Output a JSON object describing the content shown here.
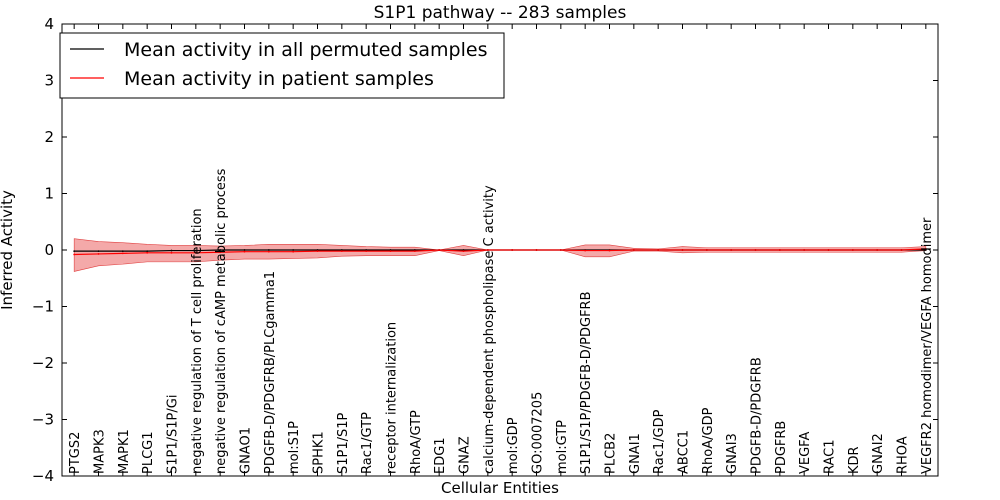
{
  "chart_data": {
    "type": "line",
    "title": "S1P1 pathway -- 283 samples",
    "xlabel": "Cellular Entities",
    "ylabel": "Inferred Activity",
    "ylim": [
      -4,
      4
    ],
    "yticks": [
      -4,
      -3,
      -2,
      -1,
      0,
      1,
      2,
      3,
      4
    ],
    "ytick_labels": [
      "−4",
      "−3",
      "−2",
      "−1",
      "0",
      "1",
      "2",
      "3",
      "4"
    ],
    "categories": [
      "PTGS2",
      "MAPK3",
      "MAPK1",
      "PLCG1",
      "S1P1/S1P/Gi",
      "negative regulation of T cell proliferation",
      "negative regulation of cAMP metabolic process",
      "GNAO1",
      "PDGFB-D/PDGFRB/PLCgamma1",
      "mol:S1P",
      "SPHK1",
      "S1P1/S1P",
      "Rac1/GTP",
      "receptor internalization",
      "RhoA/GTP",
      "EDG1",
      "GNAZ",
      "calcium-dependent phospholipase C activity",
      "mol:GDP",
      "GO:0007205",
      "mol:GTP",
      "S1P1/S1P/PDGFB-D/PDGFRB",
      "PLCB2",
      "GNAI1",
      "Rac1/GDP",
      "ABCC1",
      "RhoA/GDP",
      "GNAI3",
      "PDGFB-D/PDGFRB",
      "PDGFRB",
      "VEGFA",
      "RAC1",
      "KDR",
      "GNAI2",
      "RHOA",
      "VEGFR2 homodimer/VEGFA homodimer"
    ],
    "series": [
      {
        "name": "Mean activity in all permuted samples",
        "color": "#000000",
        "values": [
          -0.02,
          -0.02,
          -0.02,
          -0.02,
          -0.01,
          -0.01,
          0.0,
          0.0,
          0.0,
          0.0,
          0.0,
          0.0,
          0.0,
          0.0,
          0.0,
          0.0,
          0.0,
          0.0,
          0.0,
          0.0,
          0.0,
          0.0,
          0.0,
          0.0,
          0.0,
          0.0,
          0.0,
          0.0,
          0.0,
          0.0,
          0.0,
          0.0,
          0.0,
          0.0,
          0.0,
          0.0
        ]
      },
      {
        "name": "Mean activity in patient samples",
        "color": "#ff0000",
        "values": [
          -0.08,
          -0.07,
          -0.06,
          -0.05,
          -0.05,
          -0.05,
          -0.04,
          -0.03,
          -0.03,
          -0.03,
          -0.02,
          -0.02,
          -0.02,
          -0.02,
          -0.02,
          0.0,
          -0.02,
          0.0,
          0.0,
          0.0,
          0.0,
          -0.01,
          -0.01,
          0.0,
          0.0,
          0.0,
          0.0,
          0.0,
          0.0,
          0.0,
          0.0,
          0.0,
          0.0,
          0.0,
          0.0,
          0.02
        ],
        "band_upper": [
          0.2,
          0.15,
          0.13,
          0.1,
          0.08,
          0.08,
          0.07,
          0.08,
          0.1,
          0.1,
          0.1,
          0.08,
          0.06,
          0.05,
          0.05,
          0.0,
          0.08,
          0.0,
          0.0,
          0.0,
          0.0,
          0.09,
          0.09,
          0.03,
          0.02,
          0.06,
          0.04,
          0.04,
          0.04,
          0.04,
          0.04,
          0.04,
          0.04,
          0.04,
          0.04,
          0.06
        ],
        "band_lower": [
          -0.38,
          -0.28,
          -0.25,
          -0.21,
          -0.21,
          -0.21,
          -0.18,
          -0.16,
          -0.16,
          -0.15,
          -0.14,
          -0.11,
          -0.1,
          -0.1,
          -0.1,
          -0.01,
          -0.1,
          0.0,
          0.0,
          0.0,
          0.0,
          -0.12,
          -0.12,
          -0.02,
          -0.02,
          -0.05,
          -0.04,
          -0.04,
          -0.04,
          -0.04,
          -0.04,
          -0.04,
          -0.04,
          -0.04,
          -0.04,
          -0.01
        ],
        "band_color": "#f29a9a"
      }
    ],
    "legend_position": "top-left",
    "grid": false
  }
}
